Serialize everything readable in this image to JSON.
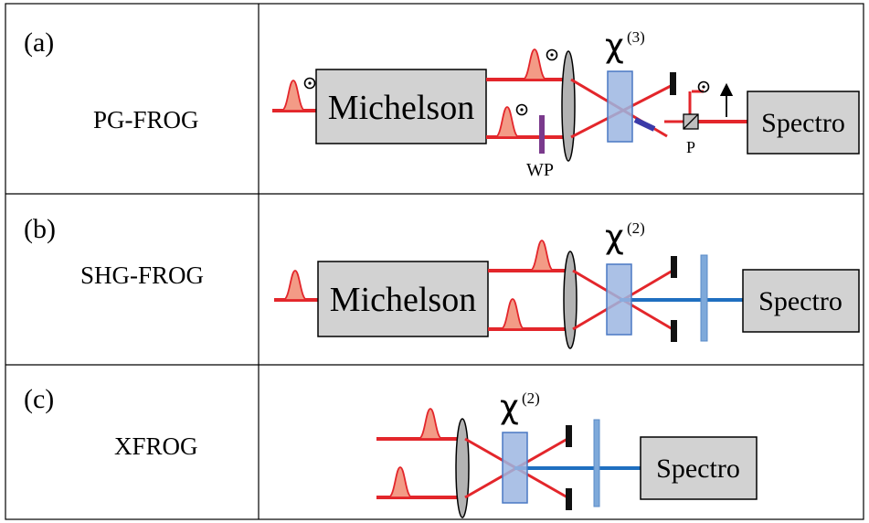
{
  "panels": [
    {
      "id": "a",
      "label": "(a)",
      "name": "PG-FROG",
      "box": "Michelson",
      "nonlinear_symbol": "χ",
      "nonlinear_order": "(3)",
      "spectrometer": "Spectro",
      "waveplate": "WP",
      "polarizer": "P"
    },
    {
      "id": "b",
      "label": "(b)",
      "name": "SHG-FROG",
      "box": "Michelson",
      "nonlinear_symbol": "χ",
      "nonlinear_order": "(2)",
      "spectrometer": "Spectro"
    },
    {
      "id": "c",
      "label": "(c)",
      "name": "XFROG",
      "nonlinear_symbol": "χ",
      "nonlinear_order": "(2)",
      "spectrometer": "Spectro"
    }
  ],
  "colors": {
    "beam_red": "#e3262b",
    "beam_blue": "#1f6fc0",
    "pulse_fill": "#f39b86",
    "box_fill": "#d2d2d2",
    "crystal_fill": "#9cb6e2",
    "filter_fill": "#7ea9da",
    "waveplate": "#7a3a8c",
    "mirror_plate": "#3a3aa8",
    "block": "#111111"
  }
}
